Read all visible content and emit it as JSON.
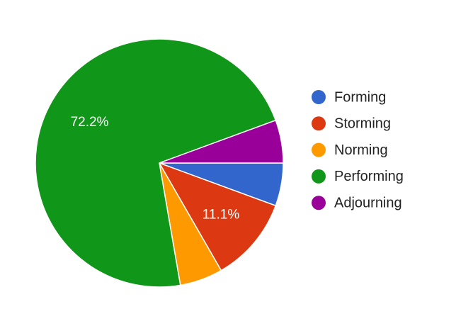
{
  "chart_data": {
    "type": "pie",
    "categories": [
      "Forming",
      "Storming",
      "Norming",
      "Performing",
      "Adjourning"
    ],
    "values": [
      5.6,
      11.1,
      5.6,
      72.2,
      5.6
    ],
    "value_labels": [
      null,
      "11.1%",
      null,
      "72.2%",
      null
    ],
    "colors": [
      "#3366cc",
      "#dc3912",
      "#ff9900",
      "#109618",
      "#990099"
    ],
    "legend": "right"
  }
}
